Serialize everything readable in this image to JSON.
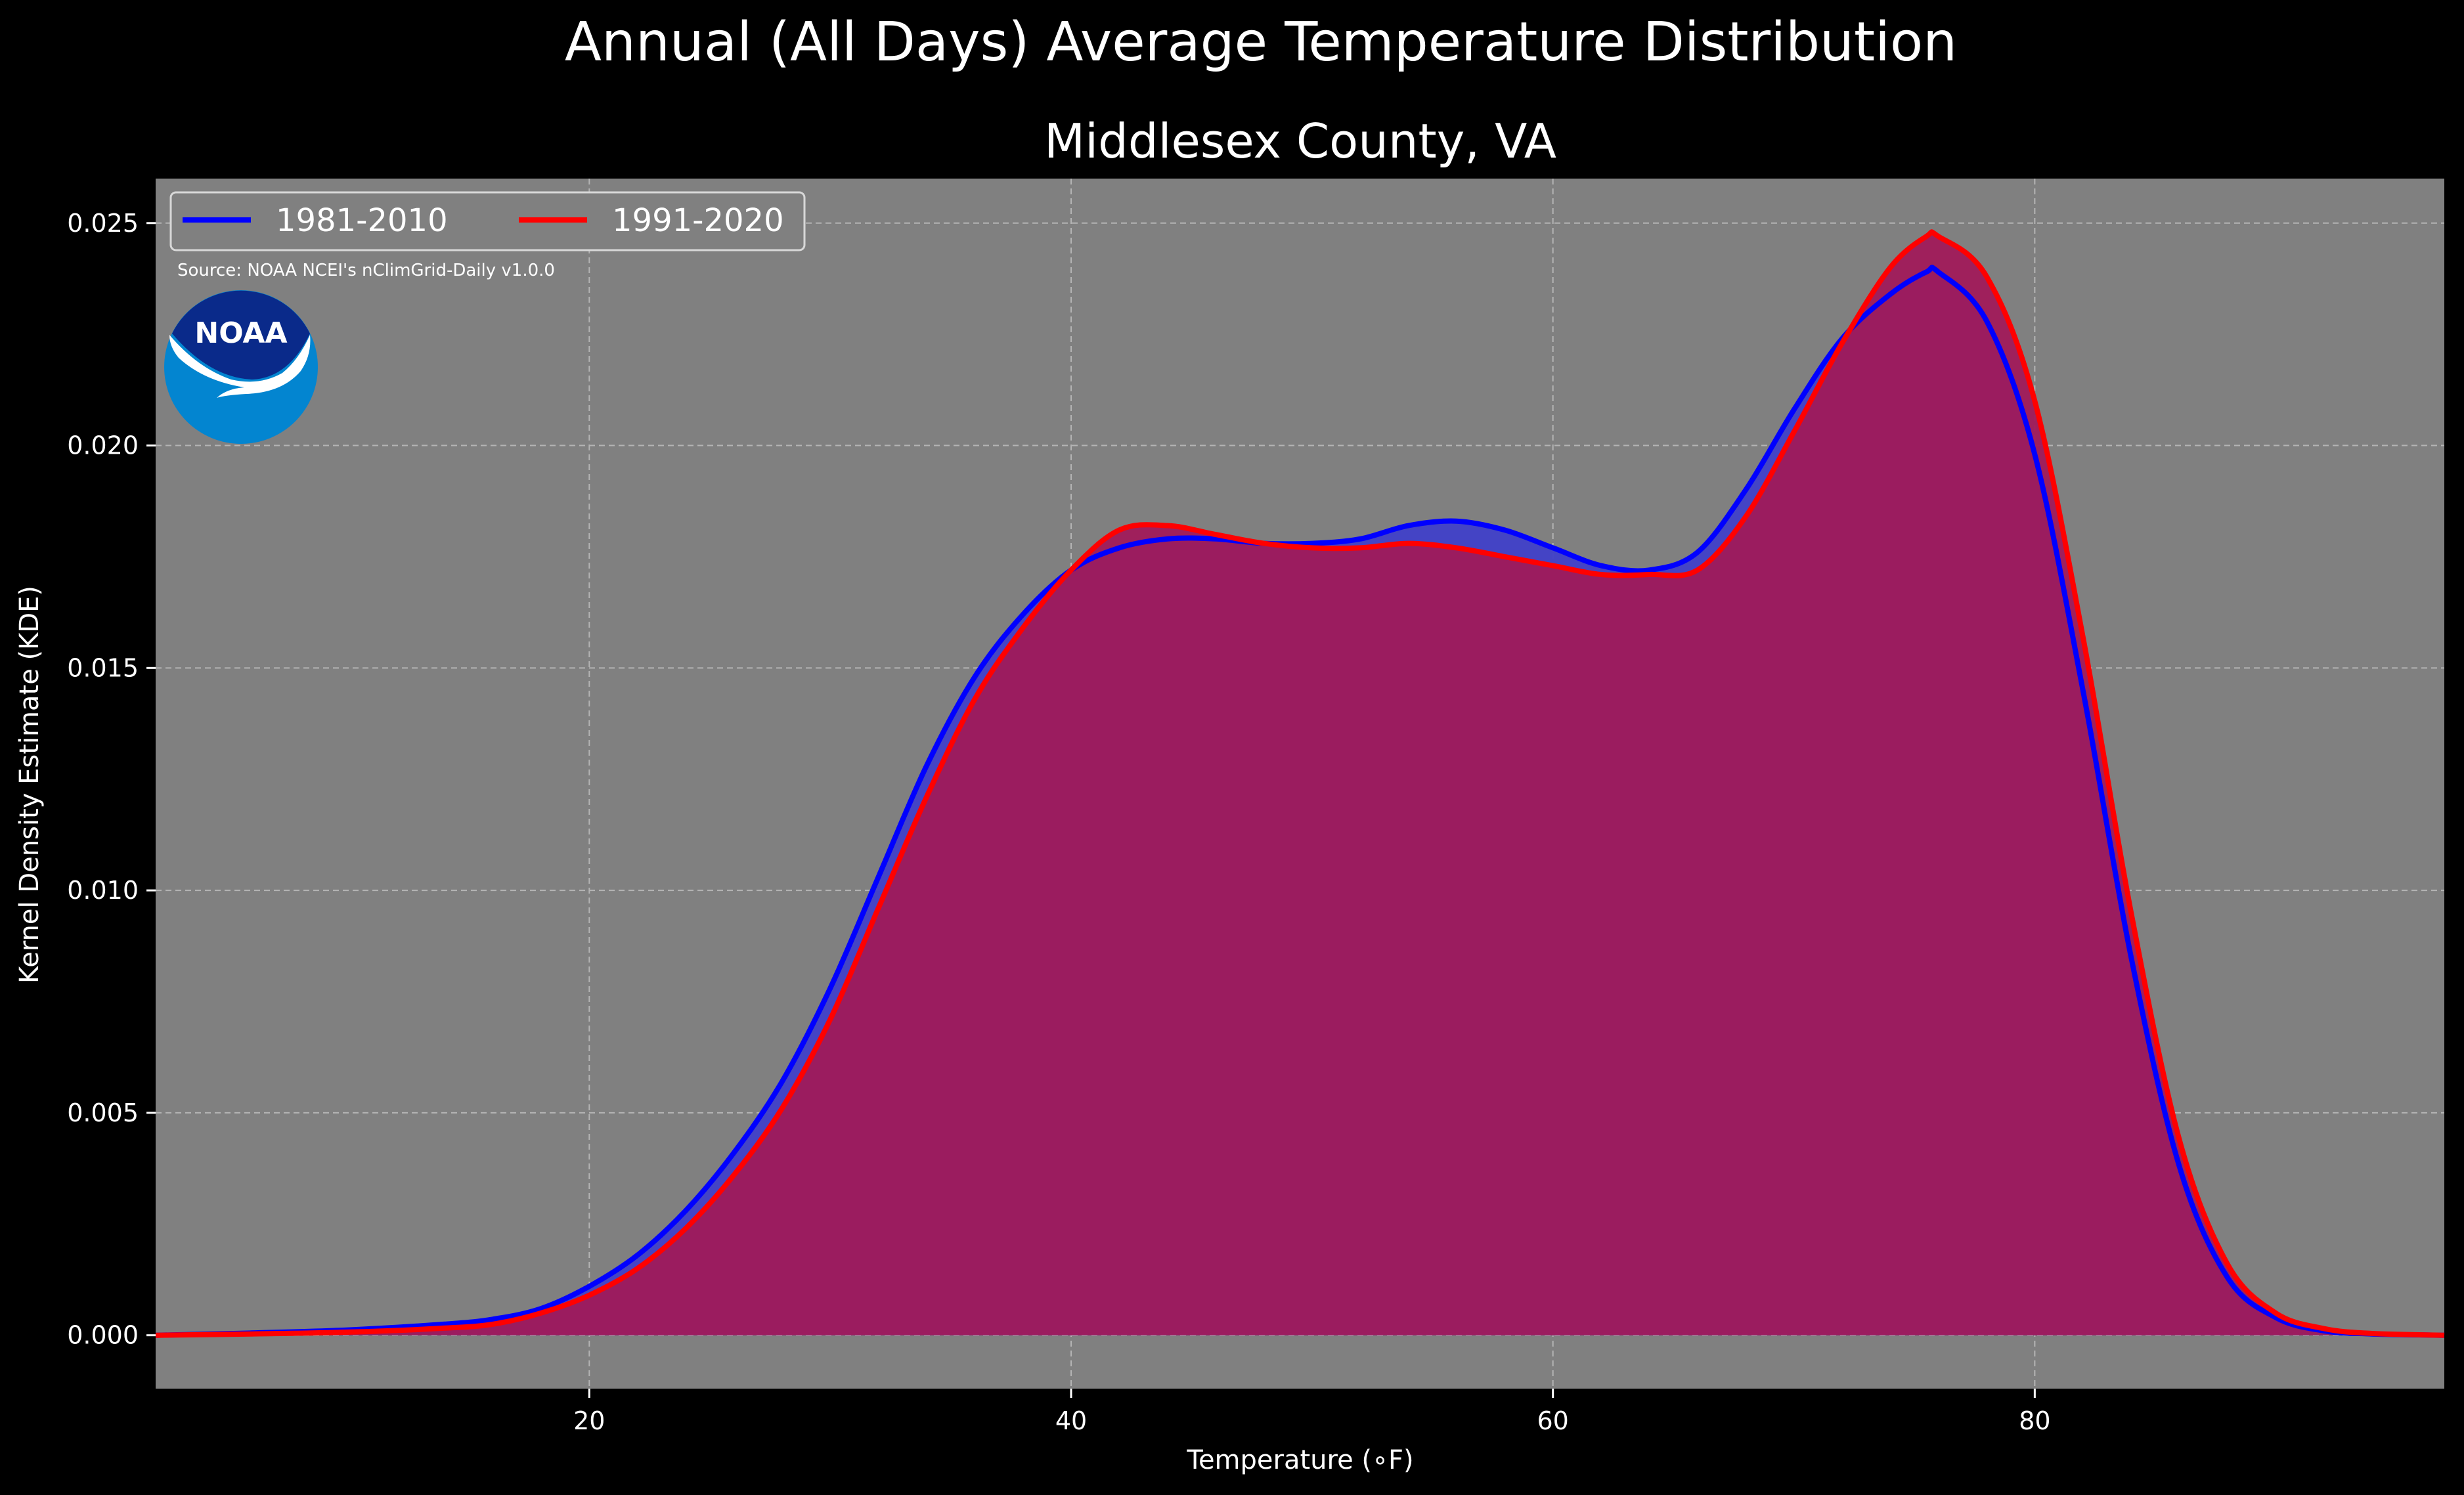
{
  "figure": {
    "suptitle": "Annual (All Days) Average Temperature Distribution",
    "background": "#000000",
    "plot_background": "#808080"
  },
  "logo": {
    "text": "NOAA",
    "outer_color": "#0385D0",
    "inner_color": "#0A2A8A"
  },
  "source_note": "Source: NOAA NCEI's nClimGrid-Daily v1.0.0",
  "chart_data": {
    "type": "area",
    "title": "Middlesex County, VA",
    "xlabel": "Temperature (∘F)",
    "ylabel": "Kernel Density Estimate (KDE)",
    "xlim": [
      2,
      97
    ],
    "ylim": [
      -0.0012,
      0.026
    ],
    "xticks": [
      20,
      40,
      60,
      80
    ],
    "xtick_labels": [
      "20",
      "40",
      "60",
      "80"
    ],
    "yticks": [
      0.0,
      0.005,
      0.01,
      0.015,
      0.02,
      0.025
    ],
    "ytick_labels": [
      "0.000",
      "0.005",
      "0.010",
      "0.015",
      "0.020",
      "0.025"
    ],
    "grid": true,
    "legend_position": "top-left",
    "x": [
      2,
      6,
      10,
      14,
      16,
      18,
      20,
      22,
      24,
      26,
      28,
      30,
      32,
      34,
      36,
      38,
      40,
      42,
      44,
      46,
      48,
      50,
      52,
      54,
      56,
      58,
      60,
      62,
      64,
      66,
      68,
      70,
      72,
      74,
      75.5,
      76,
      78,
      80,
      82,
      84,
      86,
      88,
      90,
      92,
      94,
      97
    ],
    "series": [
      {
        "name": "1981-2010",
        "color": "#0000FF",
        "fill": "#4040C8",
        "values": [
          0.0,
          5e-05,
          0.00012,
          0.00025,
          0.00036,
          0.0006,
          0.0011,
          0.0018,
          0.0028,
          0.0041,
          0.0057,
          0.0078,
          0.0103,
          0.0128,
          0.0148,
          0.0162,
          0.0172,
          0.0177,
          0.0179,
          0.0179,
          0.0178,
          0.0178,
          0.0179,
          0.0182,
          0.0183,
          0.0181,
          0.0177,
          0.0173,
          0.0172,
          0.0176,
          0.019,
          0.0208,
          0.0224,
          0.0234,
          0.0239,
          0.0239,
          0.0228,
          0.0198,
          0.0145,
          0.0085,
          0.0038,
          0.0013,
          0.0004,
          0.0001,
          3e-05,
          0.0
        ]
      },
      {
        "name": "1991-2020",
        "color": "#FF0000",
        "fill": "#A01A5A",
        "values": [
          0.0,
          3e-05,
          7e-05,
          0.00016,
          0.00025,
          0.0005,
          0.0009,
          0.0015,
          0.0024,
          0.0036,
          0.0051,
          0.0071,
          0.0096,
          0.0121,
          0.0143,
          0.0159,
          0.0172,
          0.0181,
          0.0182,
          0.018,
          0.0178,
          0.0177,
          0.0177,
          0.0178,
          0.0177,
          0.0175,
          0.0173,
          0.0171,
          0.0171,
          0.0172,
          0.0184,
          0.0203,
          0.0223,
          0.024,
          0.0247,
          0.0247,
          0.0238,
          0.021,
          0.0157,
          0.0095,
          0.0044,
          0.0016,
          0.0005,
          0.00015,
          4e-05,
          0.0
        ]
      }
    ]
  }
}
